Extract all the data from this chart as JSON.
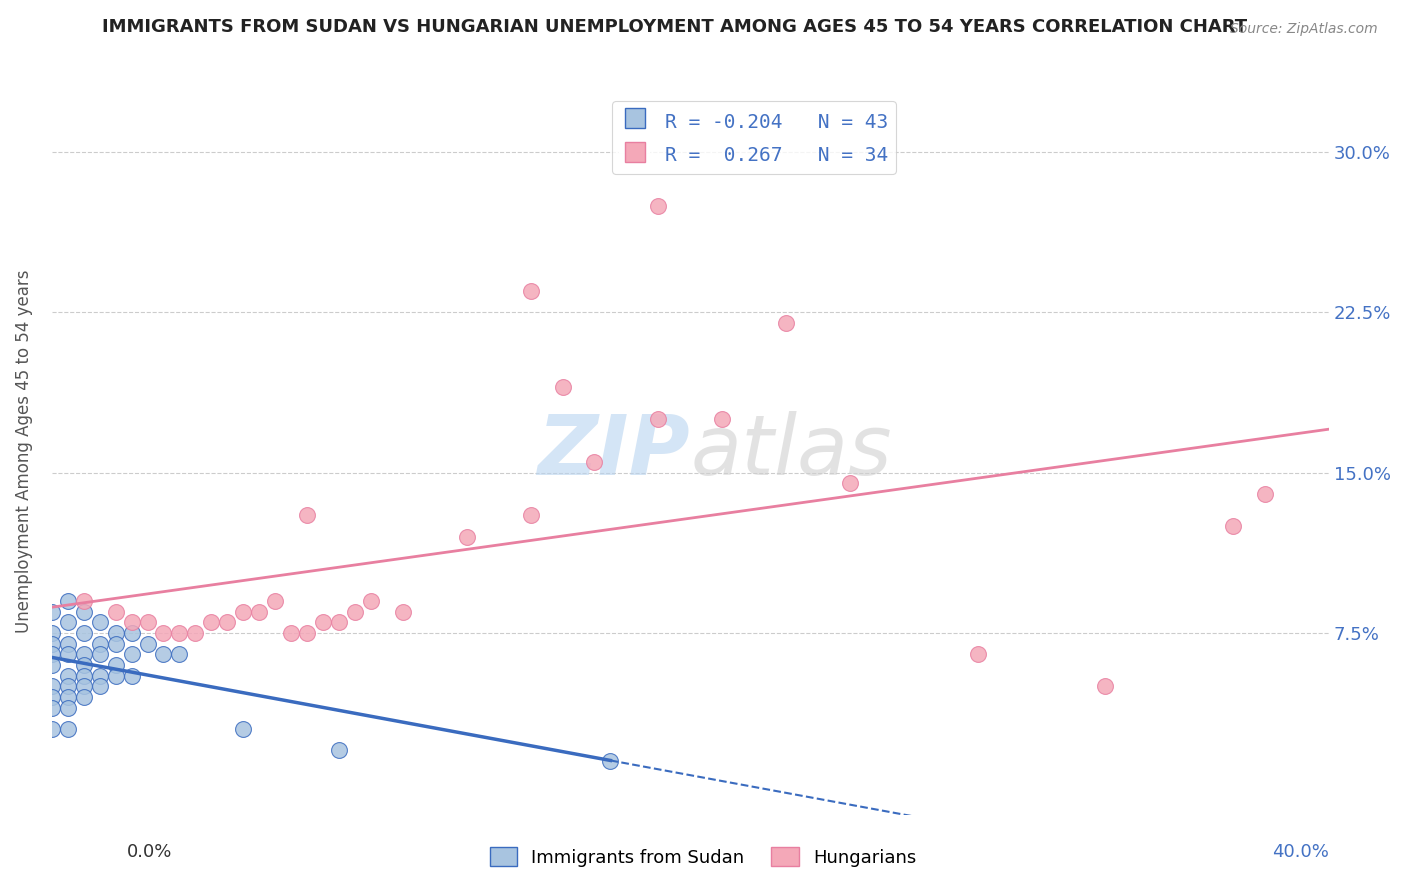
{
  "title": "IMMIGRANTS FROM SUDAN VS HUNGARIAN UNEMPLOYMENT AMONG AGES 45 TO 54 YEARS CORRELATION CHART",
  "source": "Source: ZipAtlas.com",
  "ylabel": "Unemployment Among Ages 45 to 54 years",
  "yticks": [
    "7.5%",
    "15.0%",
    "22.5%",
    "30.0%"
  ],
  "ytick_vals": [
    0.075,
    0.15,
    0.225,
    0.3
  ],
  "xlim": [
    0.0,
    0.4
  ],
  "ylim": [
    -0.01,
    0.33
  ],
  "sudan_color": "#a8c4e0",
  "hungarian_color": "#f4a8b8",
  "sudan_line_color": "#3a6bbf",
  "hungarian_line_color": "#e87fa0",
  "watermark_zip": "ZIP",
  "watermark_atlas": "atlas",
  "sudan_points": [
    [
      0.0,
      0.085
    ],
    [
      0.0,
      0.075
    ],
    [
      0.0,
      0.07
    ],
    [
      0.0,
      0.065
    ],
    [
      0.0,
      0.06
    ],
    [
      0.005,
      0.09
    ],
    [
      0.005,
      0.08
    ],
    [
      0.005,
      0.07
    ],
    [
      0.005,
      0.065
    ],
    [
      0.01,
      0.085
    ],
    [
      0.01,
      0.075
    ],
    [
      0.01,
      0.065
    ],
    [
      0.01,
      0.06
    ],
    [
      0.015,
      0.08
    ],
    [
      0.015,
      0.07
    ],
    [
      0.015,
      0.065
    ],
    [
      0.02,
      0.075
    ],
    [
      0.02,
      0.07
    ],
    [
      0.025,
      0.075
    ],
    [
      0.03,
      0.07
    ],
    [
      0.035,
      0.065
    ],
    [
      0.04,
      0.065
    ],
    [
      0.005,
      0.055
    ],
    [
      0.01,
      0.055
    ],
    [
      0.015,
      0.055
    ],
    [
      0.02,
      0.06
    ],
    [
      0.025,
      0.065
    ],
    [
      0.0,
      0.05
    ],
    [
      0.005,
      0.05
    ],
    [
      0.01,
      0.05
    ],
    [
      0.015,
      0.05
    ],
    [
      0.02,
      0.055
    ],
    [
      0.025,
      0.055
    ],
    [
      0.0,
      0.045
    ],
    [
      0.005,
      0.045
    ],
    [
      0.01,
      0.045
    ],
    [
      0.0,
      0.04
    ],
    [
      0.005,
      0.04
    ],
    [
      0.0,
      0.03
    ],
    [
      0.005,
      0.03
    ],
    [
      0.06,
      0.03
    ],
    [
      0.09,
      0.02
    ],
    [
      0.175,
      0.015
    ]
  ],
  "hungarian_points": [
    [
      0.01,
      0.09
    ],
    [
      0.02,
      0.085
    ],
    [
      0.025,
      0.08
    ],
    [
      0.03,
      0.08
    ],
    [
      0.035,
      0.075
    ],
    [
      0.04,
      0.075
    ],
    [
      0.045,
      0.075
    ],
    [
      0.05,
      0.08
    ],
    [
      0.055,
      0.08
    ],
    [
      0.06,
      0.085
    ],
    [
      0.065,
      0.085
    ],
    [
      0.07,
      0.09
    ],
    [
      0.075,
      0.075
    ],
    [
      0.08,
      0.075
    ],
    [
      0.085,
      0.08
    ],
    [
      0.09,
      0.08
    ],
    [
      0.095,
      0.085
    ],
    [
      0.1,
      0.09
    ],
    [
      0.11,
      0.085
    ],
    [
      0.13,
      0.12
    ],
    [
      0.15,
      0.13
    ],
    [
      0.17,
      0.155
    ],
    [
      0.19,
      0.175
    ],
    [
      0.21,
      0.175
    ],
    [
      0.25,
      0.145
    ],
    [
      0.29,
      0.065
    ],
    [
      0.33,
      0.05
    ],
    [
      0.37,
      0.125
    ],
    [
      0.15,
      0.235
    ],
    [
      0.19,
      0.275
    ],
    [
      0.23,
      0.22
    ],
    [
      0.38,
      0.14
    ],
    [
      0.16,
      0.19
    ],
    [
      0.08,
      0.13
    ]
  ]
}
